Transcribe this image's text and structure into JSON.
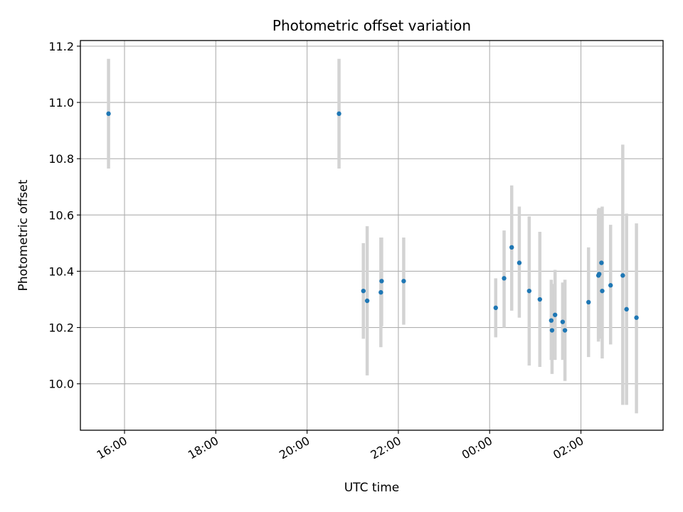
{
  "chart_data": {
    "type": "scatter",
    "title": "Photometric offset variation",
    "xlabel": "UTC time",
    "ylabel": "Photometric offset",
    "x_axis": {
      "kind": "time",
      "range": [
        "15:02",
        "03:48"
      ],
      "ticks": [
        "16:00",
        "18:00",
        "20:00",
        "22:00",
        "00:00",
        "02:00"
      ],
      "tick_rotation_deg": 30
    },
    "ylim": [
      9.835,
      11.22
    ],
    "y_ticks": [
      "10.0",
      "10.2",
      "10.4",
      "10.6",
      "10.8",
      "11.0",
      "11.2"
    ],
    "grid": true,
    "series": [
      {
        "marker_color": "#1f77b4",
        "errorbar_color": "#d3d3d3",
        "points": [
          {
            "t": "15:39",
            "y": 10.96,
            "lo": 10.765,
            "hi": 11.155
          },
          {
            "t": "20:42",
            "y": 10.96,
            "lo": 10.765,
            "hi": 11.155
          },
          {
            "t": "21:14",
            "y": 10.33,
            "lo": 10.16,
            "hi": 10.5
          },
          {
            "t": "21:19",
            "y": 10.295,
            "lo": 10.03,
            "hi": 10.56
          },
          {
            "t": "21:37",
            "y": 10.325,
            "lo": 10.13,
            "hi": 10.52
          },
          {
            "t": "21:38",
            "y": 10.365,
            "lo": 10.205,
            "hi": 10.52
          },
          {
            "t": "22:07",
            "y": 10.365,
            "lo": 10.21,
            "hi": 10.52
          },
          {
            "t": "00:08",
            "y": 10.27,
            "lo": 10.165,
            "hi": 10.375
          },
          {
            "t": "00:19",
            "y": 10.375,
            "lo": 10.2,
            "hi": 10.545
          },
          {
            "t": "00:29",
            "y": 10.485,
            "lo": 10.26,
            "hi": 10.705
          },
          {
            "t": "00:39",
            "y": 10.43,
            "lo": 10.235,
            "hi": 10.63
          },
          {
            "t": "00:52",
            "y": 10.33,
            "lo": 10.065,
            "hi": 10.595
          },
          {
            "t": "01:06",
            "y": 10.3,
            "lo": 10.06,
            "hi": 10.54
          },
          {
            "t": "01:21",
            "y": 10.225,
            "lo": 10.085,
            "hi": 10.37
          },
          {
            "t": "01:22",
            "y": 10.19,
            "lo": 10.035,
            "hi": 10.355
          },
          {
            "t": "01:26",
            "y": 10.245,
            "lo": 10.085,
            "hi": 10.405
          },
          {
            "t": "01:36",
            "y": 10.22,
            "lo": 10.085,
            "hi": 10.36
          },
          {
            "t": "01:39",
            "y": 10.19,
            "lo": 10.01,
            "hi": 10.37
          },
          {
            "t": "02:10",
            "y": 10.29,
            "lo": 10.095,
            "hi": 10.485
          },
          {
            "t": "02:23",
            "y": 10.385,
            "lo": 10.15,
            "hi": 10.62
          },
          {
            "t": "02:24",
            "y": 10.39,
            "lo": 10.16,
            "hi": 10.625
          },
          {
            "t": "02:27",
            "y": 10.43,
            "lo": 10.185,
            "hi": 10.58
          },
          {
            "t": "02:28",
            "y": 10.33,
            "lo": 10.09,
            "hi": 10.63
          },
          {
            "t": "02:39",
            "y": 10.35,
            "lo": 10.14,
            "hi": 10.565
          },
          {
            "t": "02:55",
            "y": 10.385,
            "lo": 9.925,
            "hi": 10.85
          },
          {
            "t": "03:00",
            "y": 10.265,
            "lo": 9.925,
            "hi": 10.605
          },
          {
            "t": "03:13",
            "y": 10.235,
            "lo": 9.895,
            "hi": 10.57
          }
        ]
      }
    ]
  }
}
